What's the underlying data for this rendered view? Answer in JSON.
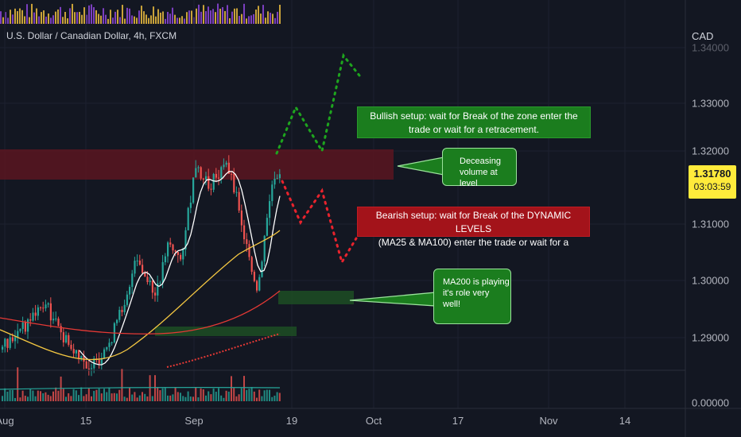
{
  "symbol": {
    "title": "U.S. Dollar / Canadian Dollar, 4h, FXCM",
    "currency": "CAD"
  },
  "price_axis": {
    "ticks": [
      "1.33000",
      "1.32000",
      "1.31000",
      "1.30000",
      "1.29000",
      "0.00000"
    ],
    "partial_top_tick": "1.34000"
  },
  "current_price": {
    "value": "1.31780",
    "countdown": "03:03:59",
    "color": "#ffeb3b"
  },
  "time_axis": {
    "ticks": [
      "Aug",
      "15",
      "Sep",
      "19",
      "Oct",
      "17",
      "Nov",
      "14"
    ]
  },
  "annotations": {
    "bullish_line1": "Bullish setup: wait for Break of the zone enter the",
    "bullish_line2": "trade or wait for a retracement.",
    "bearish_line1": "Bearish setup: wait for Break of the DYNAMIC LEVELS",
    "bearish_line2": "(MA25 & MA100) enter the trade or wait for a",
    "volume_line1": "Deceasing",
    "volume_line2": "volume at level",
    "ma200_line1": "MA200 is playing",
    "ma200_line2": "it's role very",
    "ma200_line3": "well!"
  },
  "colors": {
    "background": "#131722",
    "bull_candle": "#26a69a",
    "bear_candle": "#ef5350",
    "ma25": "#ffffff",
    "ma100": "#f5c842",
    "ma200": "#e53935",
    "bullish_box": "#1b7d1e",
    "bearish_box": "#a3131a",
    "resistance_zone": "#5a1520",
    "support_zone": "#1d4a24"
  }
}
